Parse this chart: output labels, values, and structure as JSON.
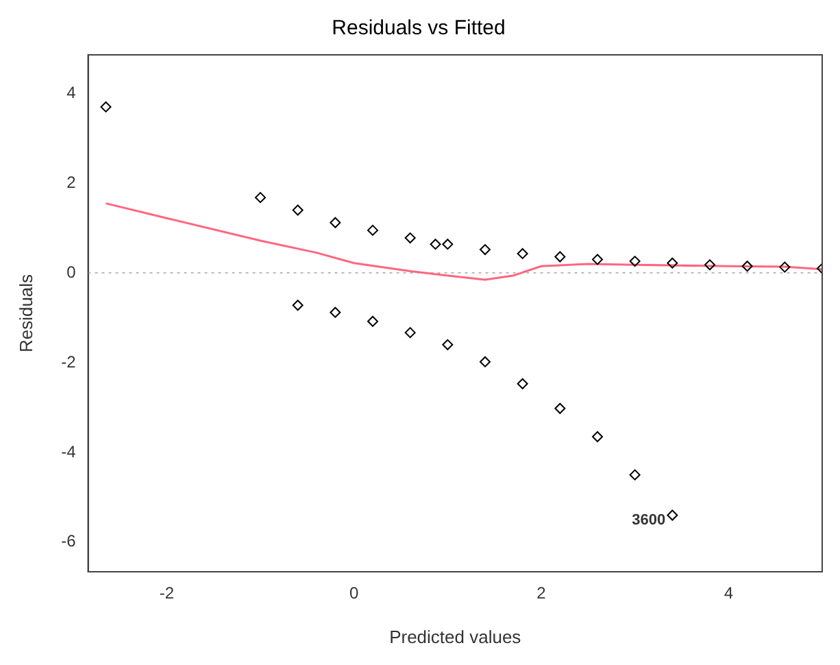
{
  "chart_data": {
    "type": "scatter",
    "title": "Residuals vs Fitted",
    "xlabel": "Predicted values",
    "ylabel": "Residuals",
    "xlim": [
      -2.84,
      5.0
    ],
    "ylim": [
      -6.66,
      4.86
    ],
    "xticks": [
      -2,
      0,
      2,
      4
    ],
    "yticks": [
      -6,
      -4,
      -2,
      0,
      2,
      4
    ],
    "grid": false,
    "legend": false,
    "series": [
      {
        "marker": "diamond",
        "color": "#000000",
        "x": [
          -2.65,
          -1.0,
          -0.6,
          -0.2,
          0.2,
          0.6,
          0.87,
          1.0,
          1.4,
          1.8,
          2.2,
          2.6,
          3.0,
          3.4,
          3.8,
          4.2,
          4.6,
          5.0,
          -0.6,
          -0.2,
          0.2,
          0.6,
          1.0,
          1.4,
          1.8,
          2.2,
          2.6,
          3.0,
          3.4
        ],
        "values": [
          3.7,
          1.68,
          1.4,
          1.12,
          0.95,
          0.78,
          0.64,
          0.64,
          0.52,
          0.43,
          0.36,
          0.3,
          0.26,
          0.22,
          0.18,
          0.15,
          0.13,
          0.1,
          -0.72,
          -0.88,
          -1.08,
          -1.33,
          -1.6,
          -1.98,
          -2.47,
          -3.02,
          -3.65,
          -4.5,
          -5.4
        ]
      },
      {
        "type": "line",
        "color": "#ff6680",
        "x": [
          -2.65,
          -2.0,
          -1.0,
          -0.4,
          0.0,
          0.6,
          1.0,
          1.4,
          1.7,
          2.0,
          2.5,
          3.0,
          4.0,
          4.6,
          5.0
        ],
        "values": [
          1.55,
          1.22,
          0.72,
          0.45,
          0.22,
          0.04,
          -0.06,
          -0.15,
          -0.06,
          0.15,
          0.2,
          0.18,
          0.15,
          0.14,
          0.08
        ]
      }
    ],
    "ref_lines": [
      {
        "axis": "y",
        "value": 0,
        "color": "#bbbbbb",
        "line_style": "dotted"
      }
    ],
    "annotations": [
      {
        "text": "3600",
        "x": 3.4,
        "y": -5.4
      }
    ]
  }
}
